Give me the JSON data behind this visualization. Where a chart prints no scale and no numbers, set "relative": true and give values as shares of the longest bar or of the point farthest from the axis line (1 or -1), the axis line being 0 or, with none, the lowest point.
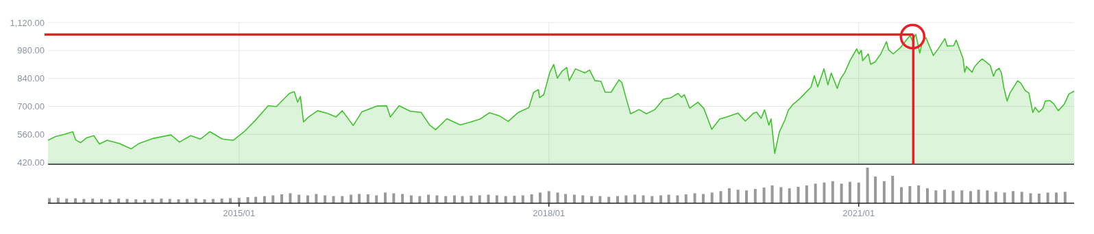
{
  "chart_data": [
    {
      "type": "area",
      "color": "#3fc22c",
      "grid": true,
      "tick_labels": "y",
      "ylim": [
        410,
        1120
      ],
      "yticks": [
        {
          "value": 420,
          "label": "420.00"
        },
        {
          "value": 560,
          "label": "560.00"
        },
        {
          "value": 700,
          "label": "700.00"
        },
        {
          "value": 840,
          "label": "840.00"
        },
        {
          "value": 980,
          "label": "980.00"
        },
        {
          "value": 1120,
          "label": "1,120.00"
        }
      ],
      "xlim": [
        "2013-02-24",
        "2023-02-02"
      ],
      "xticks": [
        {
          "value": "2015-01-01",
          "label": null
        },
        {
          "value": "2018-01-01",
          "label": null
        },
        {
          "value": "2021-01-01",
          "label": null
        }
      ],
      "ref_lines": [
        {
          "axis": "y",
          "value": 1060,
          "color": "#ee1c25"
        },
        {
          "axis": "x",
          "value": "2021-07-13",
          "color": "#ee1c25"
        }
      ],
      "x": [
        "2013-02-24",
        "2013-03-23",
        "2013-04-24",
        "2013-05-23",
        "2013-06-02",
        "2013-06-19",
        "2013-07-10",
        "2013-08-05",
        "2013-08-25",
        "2013-09-21",
        "2013-11-04",
        "2013-12-15",
        "2014-01-13",
        "2014-03-05",
        "2014-05-05",
        "2014-06-04",
        "2014-07-14",
        "2014-08-17",
        "2014-09-20",
        "2014-11-03",
        "2014-12-11",
        "2015-01-19",
        "2015-02-27",
        "2015-04-14",
        "2015-05-13",
        "2015-06-28",
        "2015-07-15",
        "2015-07-27",
        "2015-08-06",
        "2015-08-17",
        "2015-09-04",
        "2015-10-06",
        "2015-11-10",
        "2015-12-10",
        "2016-01-01",
        "2016-02-09",
        "2016-03-10",
        "2016-05-01",
        "2016-06-06",
        "2016-06-19",
        "2016-07-20",
        "2016-08-28",
        "2016-10-06",
        "2016-11-05",
        "2016-11-26",
        "2017-01-05",
        "2017-02-21",
        "2017-03-27",
        "2017-05-02",
        "2017-06-05",
        "2017-07-09",
        "2017-08-10",
        "2017-09-13",
        "2017-10-22",
        "2017-11-08",
        "2017-11-25",
        "2017-11-29",
        "2017-12-14",
        "2018-01-04",
        "2018-01-18",
        "2018-01-31",
        "2018-02-15",
        "2018-03-05",
        "2018-03-14",
        "2018-04-05",
        "2018-05-08",
        "2018-05-25",
        "2018-06-13",
        "2018-07-04",
        "2018-07-19",
        "2018-08-09",
        "2018-09-06",
        "2018-09-16",
        "2018-10-03",
        "2018-10-17",
        "2018-11-16",
        "2018-12-12",
        "2019-01-11",
        "2019-02-10",
        "2019-03-08",
        "2019-04-03",
        "2019-04-15",
        "2019-04-25",
        "2019-05-14",
        "2019-06-12",
        "2019-07-03",
        "2019-07-31",
        "2019-08-28",
        "2019-09-22",
        "2019-11-01",
        "2019-11-27",
        "2019-12-26",
        "2020-01-06",
        "2020-01-22",
        "2020-02-03",
        "2020-02-18",
        "2020-02-26",
        "2020-03-10",
        "2020-03-26",
        "2020-04-15",
        "2020-04-27",
        "2020-05-13",
        "2020-06-06",
        "2020-06-30",
        "2020-07-16",
        "2020-07-28",
        "2020-08-09",
        "2020-08-31",
        "2020-09-14",
        "2020-09-26",
        "2020-10-17",
        "2020-10-28",
        "2020-11-13",
        "2020-12-02",
        "2020-12-25",
        "2021-01-02",
        "2021-01-10",
        "2021-01-15",
        "2021-02-04",
        "2021-02-12",
        "2021-02-28",
        "2021-03-20",
        "2021-04-09",
        "2021-04-17",
        "2021-05-03",
        "2021-05-31",
        "2021-06-20",
        "2021-07-02",
        "2021-07-10",
        "2021-07-22",
        "2021-08-05",
        "2021-08-15",
        "2021-08-27",
        "2021-09-22",
        "2021-10-13",
        "2021-11-02",
        "2021-11-10",
        "2021-12-03",
        "2021-12-12",
        "2022-01-05",
        "2022-01-11",
        "2022-01-17",
        "2022-02-06",
        "2022-02-14",
        "2022-03-02",
        "2022-03-14",
        "2022-04-11",
        "2022-04-23",
        "2022-05-01",
        "2022-05-13",
        "2022-05-21",
        "2022-05-29",
        "2022-06-10",
        "2022-06-20",
        "2022-07-17",
        "2022-07-28",
        "2022-08-13",
        "2022-08-26",
        "2022-09-09",
        "2022-09-17",
        "2022-09-30",
        "2022-10-15",
        "2022-10-23",
        "2022-11-08",
        "2022-11-22",
        "2022-12-08",
        "2022-12-30",
        "2023-01-14",
        "2023-02-02"
      ],
      "values": [
        530,
        549,
        560,
        573,
        532,
        518,
        542,
        553,
        511,
        530,
        514,
        487,
        515,
        540,
        557,
        521,
        553,
        536,
        573,
        536,
        530,
        573,
        629,
        703,
        699,
        765,
        774,
        721,
        750,
        622,
        647,
        678,
        665,
        647,
        678,
        604,
        672,
        701,
        703,
        647,
        703,
        676,
        670,
        607,
        583,
        638,
        607,
        620,
        636,
        668,
        653,
        625,
        668,
        694,
        770,
        784,
        744,
        759,
        870,
        910,
        841,
        874,
        895,
        829,
        888,
        868,
        882,
        829,
        826,
        771,
        771,
        833,
        820,
        732,
        663,
        684,
        663,
        684,
        736,
        743,
        765,
        746,
        759,
        691,
        721,
        690,
        585,
        636,
        647,
        666,
        626,
        666,
        671,
        640,
        683,
        606,
        637,
        464,
        571,
        632,
        681,
        709,
        738,
        773,
        796,
        854,
        798,
        888,
        808,
        867,
        790,
        836,
        871,
        932,
        988,
        963,
        981,
        929,
        963,
        911,
        923,
        963,
        1024,
        983,
        963,
        998,
        1035,
        1055,
        1029,
        1061,
        967,
        1027,
        1044,
        955,
        996,
        1040,
        1002,
        1004,
        1032,
        940,
        871,
        900,
        871,
        897,
        923,
        938,
        906,
        851,
        879,
        891,
        867,
        796,
        727,
        767,
        828,
        817,
        779,
        767,
        669,
        695,
        671,
        691,
        727,
        729,
        713,
        678,
        713,
        761,
        777
      ]
    },
    {
      "type": "bar",
      "relative": true,
      "color": "#999999",
      "tick_labels": "x",
      "xlim": [
        "2013-02-24",
        "2023-02-02"
      ],
      "xticks": [
        {
          "value": "2015-01-01",
          "label": "2015/01"
        },
        {
          "value": "2018-01-01",
          "label": "2018/01"
        },
        {
          "value": "2021-01-01",
          "label": "2021/01"
        }
      ],
      "x": [
        "2013-03",
        "2013-04",
        "2013-05",
        "2013-06",
        "2013-07",
        "2013-08",
        "2013-09",
        "2013-10",
        "2013-11",
        "2013-12",
        "2014-01",
        "2014-02",
        "2014-03",
        "2014-04",
        "2014-05",
        "2014-06",
        "2014-07",
        "2014-08",
        "2014-09",
        "2014-10",
        "2014-11",
        "2014-12",
        "2015-01",
        "2015-02",
        "2015-03",
        "2015-04",
        "2015-05",
        "2015-06",
        "2015-07",
        "2015-08",
        "2015-09",
        "2015-10",
        "2015-11",
        "2015-12",
        "2016-01",
        "2016-02",
        "2016-03",
        "2016-04",
        "2016-05",
        "2016-06",
        "2016-07",
        "2016-08",
        "2016-09",
        "2016-10",
        "2016-11",
        "2016-12",
        "2017-01",
        "2017-02",
        "2017-03",
        "2017-04",
        "2017-05",
        "2017-06",
        "2017-07",
        "2017-08",
        "2017-09",
        "2017-10",
        "2017-11",
        "2017-12",
        "2018-01",
        "2018-02",
        "2018-03",
        "2018-04",
        "2018-05",
        "2018-06",
        "2018-07",
        "2018-08",
        "2018-09",
        "2018-10",
        "2018-11",
        "2018-12",
        "2019-01",
        "2019-02",
        "2019-03",
        "2019-04",
        "2019-05",
        "2019-06",
        "2019-07",
        "2019-08",
        "2019-09",
        "2019-10",
        "2019-11",
        "2019-12",
        "2020-01",
        "2020-02",
        "2020-03",
        "2020-04",
        "2020-05",
        "2020-06",
        "2020-07",
        "2020-08",
        "2020-09",
        "2020-10",
        "2020-11",
        "2020-12",
        "2021-01",
        "2021-02",
        "2021-03",
        "2021-04",
        "2021-05",
        "2021-06",
        "2021-07",
        "2021-08",
        "2021-09",
        "2021-10",
        "2021-11",
        "2021-12",
        "2022-01",
        "2022-02",
        "2022-03",
        "2022-04",
        "2022-05",
        "2022-06",
        "2022-07",
        "2022-08",
        "2022-09",
        "2022-10",
        "2022-11",
        "2022-12",
        "2023-01"
      ],
      "values": [
        0.14,
        0.15,
        0.13,
        0.14,
        0.12,
        0.13,
        0.12,
        0.11,
        0.13,
        0.12,
        0.11,
        0.1,
        0.12,
        0.13,
        0.12,
        0.11,
        0.12,
        0.13,
        0.11,
        0.12,
        0.13,
        0.14,
        0.15,
        0.17,
        0.18,
        0.2,
        0.22,
        0.25,
        0.28,
        0.24,
        0.22,
        0.26,
        0.22,
        0.2,
        0.2,
        0.24,
        0.26,
        0.25,
        0.22,
        0.3,
        0.28,
        0.26,
        0.22,
        0.2,
        0.24,
        0.22,
        0.2,
        0.22,
        0.2,
        0.21,
        0.22,
        0.24,
        0.22,
        0.2,
        0.21,
        0.22,
        0.25,
        0.3,
        0.34,
        0.3,
        0.26,
        0.24,
        0.22,
        0.2,
        0.2,
        0.18,
        0.2,
        0.22,
        0.24,
        0.22,
        0.2,
        0.22,
        0.24,
        0.22,
        0.25,
        0.28,
        0.26,
        0.3,
        0.34,
        0.42,
        0.38,
        0.36,
        0.4,
        0.44,
        0.5,
        0.45,
        0.42,
        0.46,
        0.5,
        0.55,
        0.58,
        0.62,
        0.55,
        0.6,
        0.58,
        1,
        0.75,
        0.62,
        0.77,
        0.45,
        0.48,
        0.5,
        0.42,
        0.36,
        0.38,
        0.35,
        0.36,
        0.34,
        0.38,
        0.36,
        0.32,
        0.3,
        0.34,
        0.32,
        0.28,
        0.27,
        0.3,
        0.3,
        0.32
      ]
    }
  ]
}
